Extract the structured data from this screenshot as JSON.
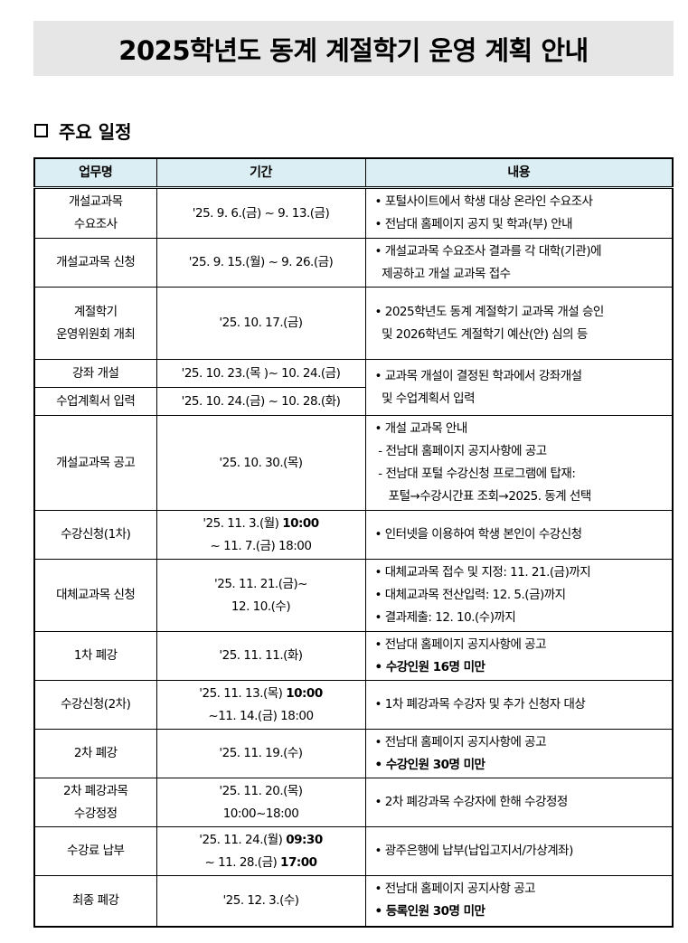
{
  "title": "2025학년도 동계 계절학기 운영 계획 안내",
  "section": {
    "icon": "square-bullet-icon",
    "label": "주요 일정"
  },
  "table": {
    "header_bg": "#dbeef3",
    "headers": [
      "업무명",
      "기간",
      "내용"
    ],
    "rows": [
      {
        "h": 56,
        "task": [
          {
            "text": "개설교과목"
          },
          {
            "text": "수요조사"
          }
        ],
        "period": [
          {
            "text": "'25. 9. 6.(금) ~ 9. 13.(금)"
          }
        ],
        "content": [
          {
            "text": "• 포털사이트에서 학생 대상 온라인 수요조사"
          },
          {
            "text": "• 전남대 홈페이지 공지 및 학과(부) 안내"
          }
        ]
      },
      {
        "h": 54,
        "task": [
          {
            "text": "개설교과목 신청"
          }
        ],
        "period": [
          {
            "text": "'25. 9. 15.(월) ~ 9. 26.(금)"
          }
        ],
        "content": [
          {
            "text": "• 개설교과목 수요조사 결과를 각 대학(기관)에"
          },
          {
            "text": "  제공하고 개설 교과목 접수"
          }
        ]
      },
      {
        "h": 80,
        "task": [
          {
            "text": "계절학기"
          },
          {
            "text": "운영위원회 개최"
          }
        ],
        "period": [
          {
            "text": "'25. 10. 17.(금)"
          }
        ],
        "content": [
          {
            "text": "• 2025학년도 동계 계절학기 교과목 개설 승인"
          },
          {
            "text": "  및 2026학년도 계절학기 예산(안) 심의 등"
          }
        ]
      },
      {
        "h": 31,
        "task": [
          {
            "text": "강좌 개설"
          }
        ],
        "period": [
          {
            "text": "'25. 10. 23.(목 )~ 10. 24.(금)"
          }
        ],
        "content": [
          {
            "text": "• 교과목 개설이 결정된 학과에서 강좌개설"
          },
          {
            "text": "  및 수업계획서 입력"
          }
        ],
        "rowspan": 2
      },
      {
        "h": 31,
        "task": [
          {
            "text": "수업계획서 입력"
          }
        ],
        "period": [
          {
            "text": "'25. 10. 24.(금) ~ 10. 28.(화)"
          }
        ]
      },
      {
        "h": 105,
        "task": [
          {
            "text": "개설교과목 공고"
          }
        ],
        "period": [
          {
            "text": "'25. 10. 30.(목)"
          }
        ],
        "content": [
          {
            "text": "• 개설 교과목 안내"
          },
          {
            "text": " - 전남대 홈페이지 공지사항에 공고"
          },
          {
            "text": " - 전남대 포털 수강신청 프로그램에 탑재:"
          },
          {
            "text": "    포털→수강시간표 조회→2025. 동계 선택"
          }
        ]
      },
      {
        "h": 54,
        "task": [
          {
            "text": "수강신청(1차)"
          }
        ],
        "period": [
          {
            "text": "'25. 11. 3.(월) ",
            "bold": "10:00"
          },
          {
            "text": "~ 11. 7.(금) 18:00"
          }
        ],
        "content": [
          {
            "text": "• 인터넷을 이용하여 학생 본인이 수강신청"
          }
        ]
      },
      {
        "h": 80,
        "task": [
          {
            "text": "대체교과목 신청"
          }
        ],
        "period": [
          {
            "text": "'25. 11. 21.(금)~"
          },
          {
            "text": "12. 10.(수)"
          }
        ],
        "content": [
          {
            "text": "• 대체교과목 접수 및 지정: 11. 21.(금)까지"
          },
          {
            "text": "• 대체교과목 전산입력: 12. 5.(금)까지"
          },
          {
            "text": "• 결과제출: 12. 10.(수)까지"
          }
        ]
      },
      {
        "h": 54,
        "task": [
          {
            "text": "1차 폐강"
          }
        ],
        "period": [
          {
            "text": "'25. 11. 11.(화)"
          }
        ],
        "content": [
          {
            "text": "• 전남대 홈페이지 공지사항에 공고"
          },
          {
            "text": "",
            "bold": "• 수강인원 16명 미만"
          }
        ]
      },
      {
        "h": 54,
        "task": [
          {
            "text": "수강신청(2차)"
          }
        ],
        "period": [
          {
            "text": "'25. 11. 13.(목) ",
            "bold": "10:00"
          },
          {
            "text": "~11. 14.(금) 18:00"
          }
        ],
        "content": [
          {
            "text": "• 1차 폐강과목 수강자 및 추가 신청자 대상"
          }
        ]
      },
      {
        "h": 54,
        "task": [
          {
            "text": "2차 폐강"
          }
        ],
        "period": [
          {
            "text": "'25. 11. 19.(수)"
          }
        ],
        "content": [
          {
            "text": "• 전남대 홈페이지 공지사항에 공고"
          },
          {
            "text": "",
            "bold": "• 수강인원 30명 미만"
          }
        ]
      },
      {
        "h": 54,
        "task": [
          {
            "text": "2차 폐강과목"
          },
          {
            "text": "수강정정"
          }
        ],
        "period": [
          {
            "text": "'25. 11. 20.(목)"
          },
          {
            "text": "10:00~18:00"
          }
        ],
        "content": [
          {
            "text": "• 2차 폐강과목 수강자에 한해 수강정정"
          }
        ]
      },
      {
        "h": 54,
        "task": [
          {
            "text": "수강료 납부"
          }
        ],
        "period": [
          {
            "text": "'25. 11. 24.(월) ",
            "bold": "09:30"
          },
          {
            "text": "~ 11. 28.(금) ",
            "bold": "17:00"
          }
        ],
        "content": [
          {
            "text": "• 광주은행에 납부(납입고지서/가상계좌)"
          }
        ]
      },
      {
        "h": 56,
        "task": [
          {
            "text": "최종 폐강"
          }
        ],
        "period": [
          {
            "text": "'25. 12. 3.(수)"
          }
        ],
        "content": [
          {
            "text": "• 전남대 홈페이지 공지사항 공고"
          },
          {
            "text": "",
            "bold": "• 등록인원 30명 미만"
          }
        ]
      }
    ]
  }
}
